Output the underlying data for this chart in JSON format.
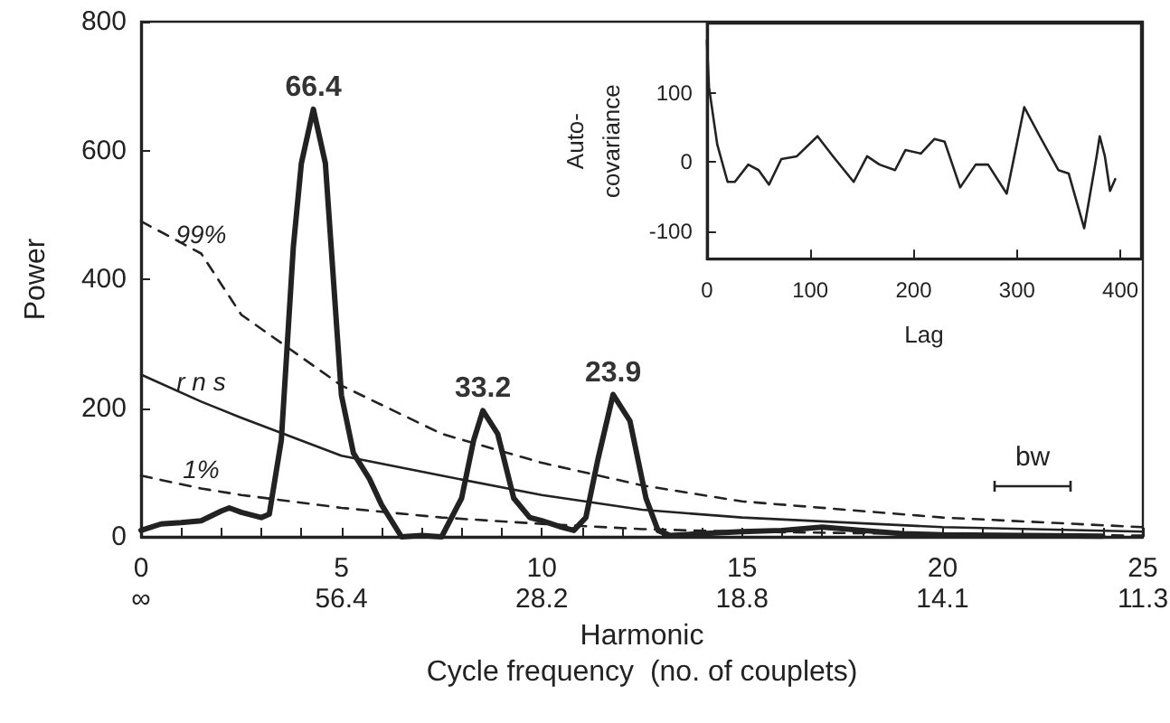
{
  "chart_data": [
    {
      "type": "line",
      "xlabel": "Harmonic\nCycle frequency  (no. of couplets)",
      "ylabel": "Power",
      "xlim": [
        0,
        25
      ],
      "xticks": [
        0,
        {
          "value": 1,
          "label": null
        },
        {
          "value": 2,
          "label": null
        },
        {
          "value": 3,
          "label": null
        },
        {
          "value": 4,
          "label": null
        },
        5,
        {
          "value": 6,
          "label": null
        },
        {
          "value": 7,
          "label": null
        },
        {
          "value": 8,
          "label": null
        },
        {
          "value": 9,
          "label": null
        },
        10,
        {
          "value": 11,
          "label": null
        },
        {
          "value": 12,
          "label": null
        },
        {
          "value": 13,
          "label": null
        },
        {
          "value": 14,
          "label": null
        },
        15,
        {
          "value": 16,
          "label": null
        },
        {
          "value": 17,
          "label": null
        },
        {
          "value": 18,
          "label": null
        },
        {
          "value": 19,
          "label": null
        },
        20,
        {
          "value": 21,
          "label": null
        },
        {
          "value": 22,
          "label": null
        },
        {
          "value": 23,
          "label": null
        },
        {
          "value": 24,
          "label": null
        },
        25
      ],
      "ylim": [
        0,
        800
      ],
      "yticks": [
        0,
        200,
        400,
        600,
        800
      ],
      "legend": false,
      "grid": false,
      "marker": "none",
      "series": [
        {
          "color": "#222222",
          "line_style": "solid",
          "x": [
            0,
            0.5,
            1,
            1.5,
            2,
            2.2,
            2.5,
            3,
            3.2,
            3.5,
            3.8,
            4,
            4.3,
            4.6,
            4.8,
            5,
            5.3,
            5.7,
            6,
            6.5,
            7,
            7.5,
            8,
            8.3,
            8.53,
            8.9,
            9.3,
            9.7,
            10,
            10.5,
            10.8,
            11.1,
            11.4,
            11.78,
            12.2,
            12.6,
            12.9,
            13.2,
            14,
            15,
            16,
            17,
            18,
            19,
            20,
            22,
            24
          ],
          "values": [
            10,
            20,
            22,
            25,
            40,
            45,
            38,
            30,
            35,
            150,
            450,
            580,
            664,
            580,
            400,
            220,
            130,
            90,
            50,
            0,
            2,
            0,
            60,
            150,
            196,
            160,
            60,
            30,
            25,
            15,
            10,
            30,
            120,
            221,
            180,
            60,
            10,
            2,
            5,
            8,
            10,
            15,
            10,
            5,
            3,
            2,
            1
          ]
        },
        {
          "name": "99%",
          "color": "#222222",
          "line_style": "dashed",
          "x": [
            0,
            1.5,
            2.5,
            5,
            7.5,
            10,
            12.5,
            15,
            20,
            25
          ],
          "values": [
            490,
            440,
            345,
            235,
            160,
            115,
            80,
            55,
            30,
            15
          ]
        },
        {
          "name": "r n s",
          "color": "#222222",
          "line_style": "solid",
          "x": [
            0,
            1.5,
            2.5,
            5,
            7.5,
            10,
            12.5,
            15,
            20,
            25
          ],
          "values": [
            252,
            210,
            185,
            126,
            95,
            65,
            42,
            30,
            15,
            8
          ]
        },
        {
          "name": "1%",
          "color": "#222222",
          "line_style": "dashed",
          "x": [
            0,
            1.5,
            2.5,
            5,
            7.5,
            10,
            12.5,
            15,
            20,
            25
          ],
          "values": [
            95,
            75,
            65,
            45,
            30,
            20,
            12,
            8,
            4,
            2
          ]
        }
      ],
      "annotations": [
        {
          "text": "66.4",
          "x": 4.3,
          "y": 664
        },
        {
          "text": "33.2",
          "x": 8.53,
          "y": 196
        },
        {
          "text": "23.9",
          "x": 11.78,
          "y": 221
        },
        "∞",
        "56.4",
        "28.2",
        "18.8",
        "14.1",
        "11.3",
        "bw"
      ]
    },
    {
      "type": "line",
      "xlabel": "Lag",
      "ylabel": "Auto-\ncovariance",
      "xlim": [
        0,
        420
      ],
      "xticks": [
        0,
        100,
        200,
        300,
        400
      ],
      "ylim": [
        -140,
        200
      ],
      "yticks": [
        -100,
        0,
        100
      ],
      "legend": false,
      "grid": false,
      "marker": "none",
      "line_style": "solid",
      "color": "#222222",
      "x": [
        0,
        2,
        10,
        20,
        27,
        40,
        50,
        60,
        72,
        87,
        107,
        122,
        142,
        155,
        167,
        182,
        192,
        207,
        220,
        230,
        245,
        260,
        272,
        290,
        307,
        322,
        340,
        350,
        365,
        377,
        380,
        385,
        390,
        395
      ],
      "values": [
        175,
        108,
        25,
        -29,
        -29,
        -4,
        -12,
        -33,
        4,
        8,
        37,
        8,
        -29,
        8,
        -4,
        -12,
        17,
        12,
        33,
        29,
        -37,
        -4,
        -4,
        -46,
        79,
        37,
        -12,
        -17,
        -96,
        8,
        37,
        8,
        -42,
        -25
      ]
    }
  ]
}
